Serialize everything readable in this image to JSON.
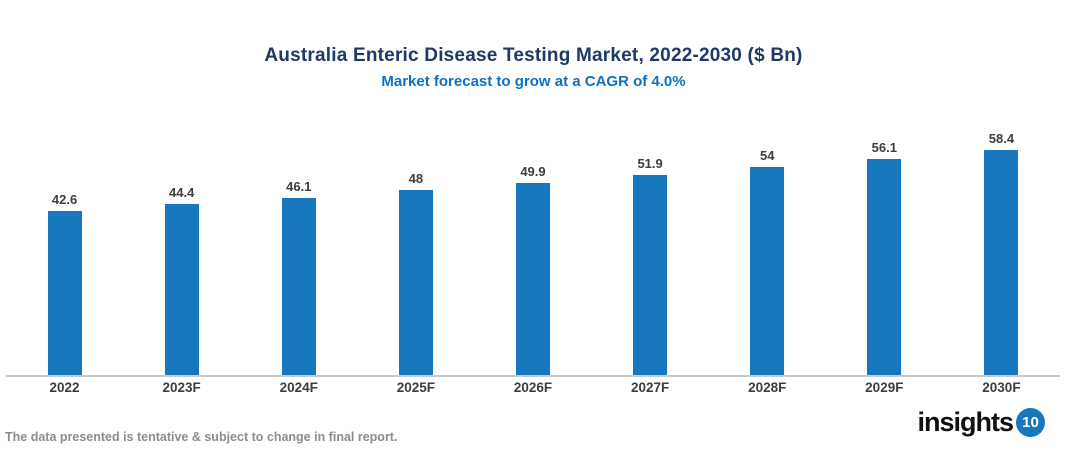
{
  "chart_data": {
    "type": "bar",
    "title": "Australia Enteric Disease Testing Market, 2022-2030 ($ Bn)",
    "subtitle": "Market forecast to grow at a CAGR of 4.0%",
    "categories": [
      "2022",
      "2023F",
      "2024F",
      "2025F",
      "2026F",
      "2027F",
      "2028F",
      "2029F",
      "2030F"
    ],
    "values": [
      42.6,
      44.4,
      46.1,
      48,
      49.9,
      51.9,
      54,
      56.1,
      58.4
    ],
    "value_labels": [
      "42.6",
      "44.4",
      "46.1",
      "48",
      "49.9",
      "51.9",
      "54",
      "56.1",
      "58.4"
    ],
    "xlabel": "",
    "ylabel": "",
    "ylim": [
      0,
      68
    ],
    "grid": false,
    "legend": false,
    "bar_color": "#1878be"
  },
  "colors": {
    "title": "#1f3864",
    "subtitle": "#0d70c4",
    "axis_line": "#c9c9c9",
    "label_text": "#3d3d3d",
    "footer_text": "#8c8c8c",
    "logo_badge": "#1878be"
  },
  "footer": {
    "disclaimer": "The data presented is tentative & subject to change in final report."
  },
  "logo": {
    "text": "insights",
    "badge": "10"
  }
}
